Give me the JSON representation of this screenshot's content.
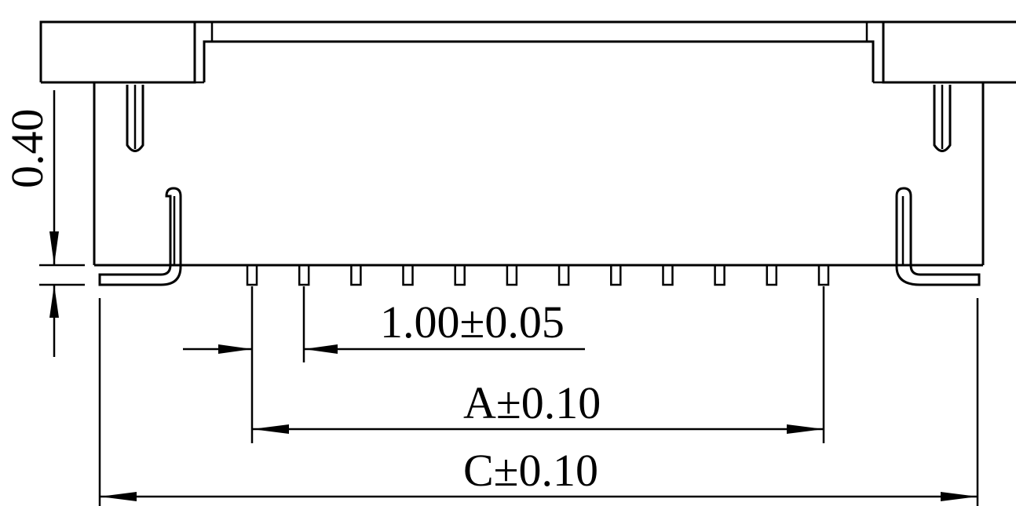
{
  "drawing": {
    "dimensions": {
      "pitch_label": "1.00±0.05",
      "a_label": "A±0.10",
      "c_label": "C±0.10",
      "height_label": "0.40"
    },
    "contact_count": 12
  }
}
